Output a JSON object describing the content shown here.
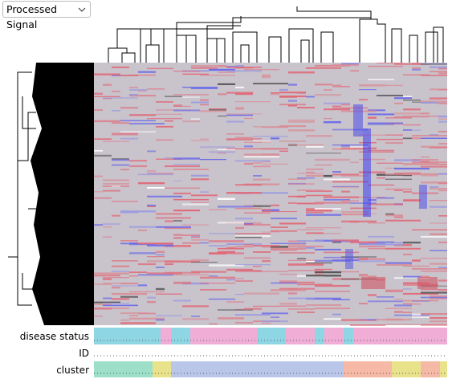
{
  "dropdown": {
    "label": "Processed Signal"
  },
  "tracks": {
    "disease_status": "disease status",
    "id": "ID",
    "cluster": "cluster"
  }
}
